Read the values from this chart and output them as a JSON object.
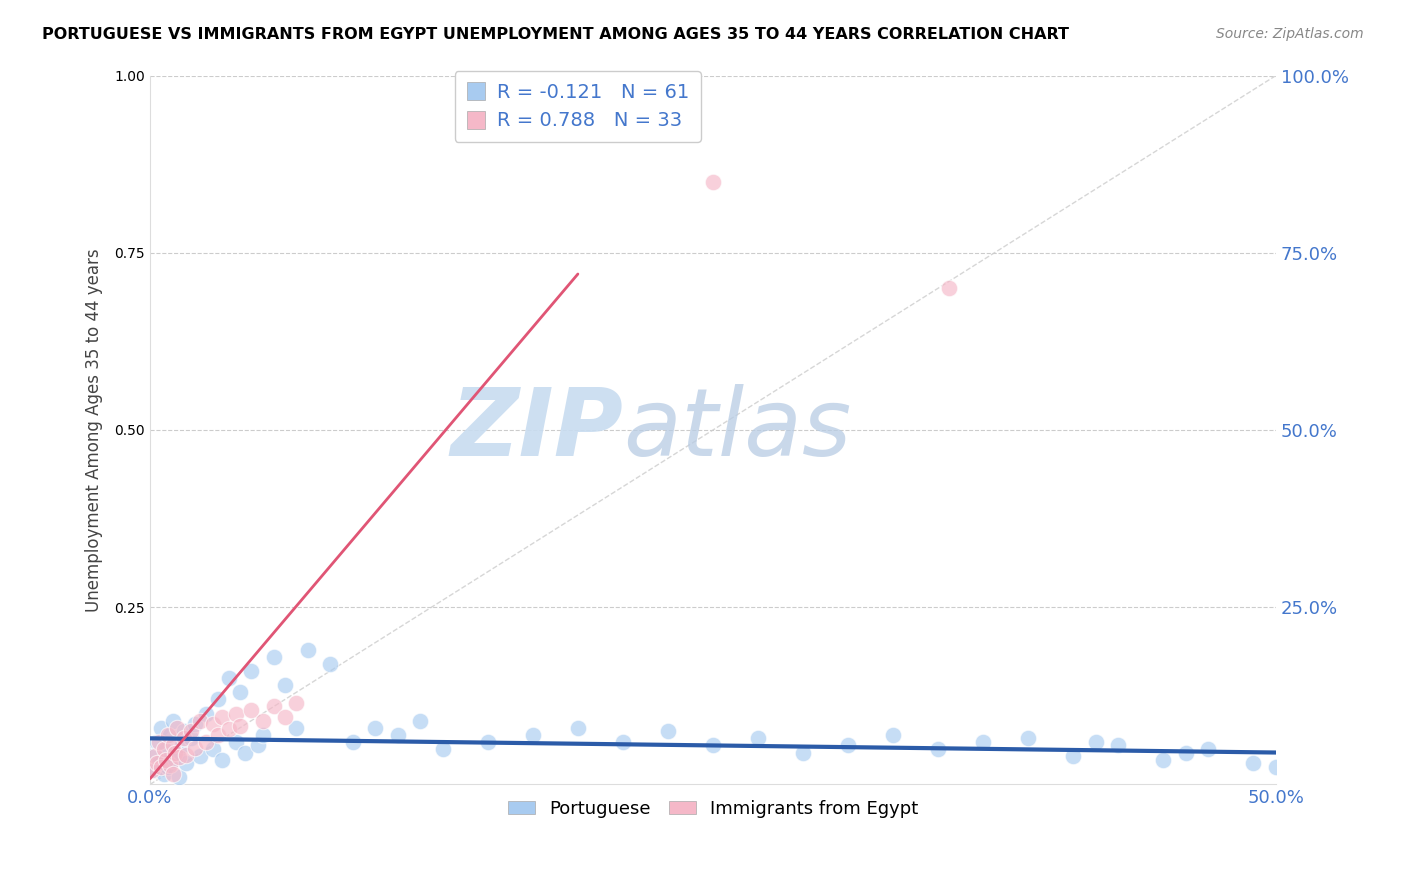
{
  "title": "PORTUGUESE VS IMMIGRANTS FROM EGYPT UNEMPLOYMENT AMONG AGES 35 TO 44 YEARS CORRELATION CHART",
  "source": "Source: ZipAtlas.com",
  "ylabel_label": "Unemployment Among Ages 35 to 44 years",
  "xlim": [
    0,
    0.5
  ],
  "ylim": [
    0,
    1.0
  ],
  "watermark_zip": "ZIP",
  "watermark_atlas": "atlas",
  "legend_labels": [
    "Portuguese",
    "Immigrants from Egypt"
  ],
  "legend_R": [
    -0.121,
    0.788
  ],
  "legend_N": [
    61,
    33
  ],
  "blue_color": "#A8CBF0",
  "pink_color": "#F5B8C8",
  "blue_line_color": "#2B5BA8",
  "pink_line_color": "#E05575",
  "diag_color": "#CCCCCC",
  "grid_color": "#CCCCCC",
  "tick_color": "#4477CC",
  "portuguese_x": [
    0.001,
    0.002,
    0.003,
    0.004,
    0.005,
    0.006,
    0.007,
    0.008,
    0.009,
    0.01,
    0.01,
    0.012,
    0.013,
    0.014,
    0.015,
    0.016,
    0.018,
    0.02,
    0.022,
    0.025,
    0.028,
    0.03,
    0.032,
    0.035,
    0.038,
    0.04,
    0.042,
    0.045,
    0.048,
    0.05,
    0.055,
    0.06,
    0.065,
    0.07,
    0.08,
    0.09,
    0.1,
    0.11,
    0.12,
    0.13,
    0.15,
    0.17,
    0.19,
    0.21,
    0.23,
    0.25,
    0.27,
    0.29,
    0.31,
    0.33,
    0.35,
    0.37,
    0.39,
    0.41,
    0.43,
    0.45,
    0.47,
    0.49,
    0.5,
    0.46,
    0.42
  ],
  "portuguese_y": [
    0.04,
    0.02,
    0.06,
    0.03,
    0.08,
    0.015,
    0.05,
    0.025,
    0.07,
    0.035,
    0.09,
    0.045,
    0.01,
    0.055,
    0.075,
    0.03,
    0.065,
    0.085,
    0.04,
    0.1,
    0.05,
    0.12,
    0.035,
    0.15,
    0.06,
    0.13,
    0.045,
    0.16,
    0.055,
    0.07,
    0.18,
    0.14,
    0.08,
    0.19,
    0.17,
    0.06,
    0.08,
    0.07,
    0.09,
    0.05,
    0.06,
    0.07,
    0.08,
    0.06,
    0.075,
    0.055,
    0.065,
    0.045,
    0.055,
    0.07,
    0.05,
    0.06,
    0.065,
    0.04,
    0.055,
    0.035,
    0.05,
    0.03,
    0.025,
    0.045,
    0.06
  ],
  "egypt_x": [
    0.001,
    0.002,
    0.003,
    0.004,
    0.005,
    0.006,
    0.007,
    0.008,
    0.009,
    0.01,
    0.011,
    0.012,
    0.013,
    0.015,
    0.016,
    0.018,
    0.02,
    0.022,
    0.025,
    0.028,
    0.03,
    0.032,
    0.035,
    0.038,
    0.04,
    0.045,
    0.05,
    0.055,
    0.06,
    0.065,
    0.25,
    0.355,
    0.01
  ],
  "egypt_y": [
    0.02,
    0.04,
    0.03,
    0.06,
    0.025,
    0.05,
    0.035,
    0.07,
    0.028,
    0.055,
    0.045,
    0.08,
    0.038,
    0.065,
    0.042,
    0.075,
    0.052,
    0.09,
    0.06,
    0.085,
    0.07,
    0.095,
    0.078,
    0.1,
    0.082,
    0.105,
    0.09,
    0.11,
    0.095,
    0.115,
    0.85,
    0.7,
    0.015
  ],
  "blue_trendline_x": [
    0.0,
    0.5
  ],
  "blue_trendline_y": [
    0.065,
    0.045
  ],
  "pink_trendline_x": [
    0.0,
    0.19
  ],
  "pink_trendline_y": [
    0.008,
    0.72
  ]
}
